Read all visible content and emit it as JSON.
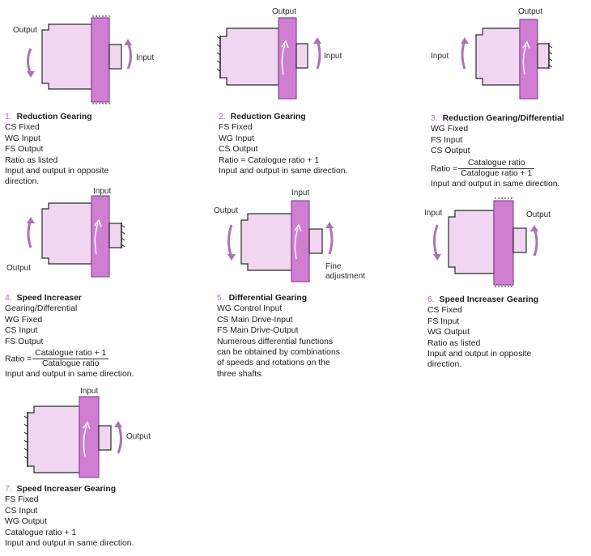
{
  "colors": {
    "body": "#f0d6f0",
    "gear": "#cf7ed2",
    "gear_stroke": "#8c4a96",
    "arrow": "#b070b8",
    "num": "#b070b8"
  },
  "diagrams": [
    {
      "num": "1.",
      "title": "Reduction Gearing",
      "lines": [
        "CS  Fixed",
        "WG  Input",
        "FS  Output",
        "Ratio as listed",
        "Input and output in opposite",
        "direction."
      ],
      "labels": [
        "Output",
        "Input"
      ]
    },
    {
      "num": "2.",
      "title": "Reduction Gearing",
      "lines": [
        "FS  Fixed",
        "WG  Input",
        "CS  Output",
        "Ratio = Catalogue ratio + 1",
        "Input and output in same direction."
      ],
      "labels": [
        "Output",
        "Input"
      ]
    },
    {
      "num": "3.",
      "title": "Reduction Gearing/Differential",
      "lines": [
        "WG  Fixed",
        "FS  Input",
        "CS  Output"
      ],
      "ratio_label": "Ratio =",
      "ratio_num": "Catalogue ratio",
      "ratio_den": "Catalogue ratio + 1",
      "after": [
        "Input and output in same direction."
      ],
      "labels": [
        "Output",
        "Input"
      ]
    },
    {
      "num": "4.",
      "title": "Speed Increaser",
      "lines": [
        "Gearing/Differential",
        "WG  Fixed",
        "CS  Input",
        "FS  Output"
      ],
      "ratio_label": "Ratio =",
      "ratio_num": "Catalogue ratio + 1",
      "ratio_den": "Catalogue ratio",
      "after": [
        "Input and output in same direction."
      ],
      "labels": [
        "Input",
        "Output"
      ]
    },
    {
      "num": "5.",
      "title": "Differential Gearing",
      "lines": [
        "WG  Control Input",
        "CS  Main Drive-Input",
        "FS  Main Drive-Output",
        "Numerous differential functions",
        "can be obtained by combinations",
        "of speeds and rotations on the",
        "three shafts."
      ],
      "labels": [
        "Input",
        "Output",
        "Fine",
        "adjustment"
      ]
    },
    {
      "num": "6.",
      "title": "Speed Increaser Gearing",
      "lines": [
        "CS  Fixed",
        "FS  Input",
        "WG  Output",
        "Ratio as listed",
        "Input and output in opposite",
        "direction."
      ],
      "labels": [
        "Input",
        "Output"
      ]
    },
    {
      "num": "7.",
      "title": "Speed Increaser Gearing",
      "lines": [
        "FS  Fixed",
        "CS  Input",
        "WG  Output",
        "Catalogue ratio + 1",
        "Input and output in same direction."
      ],
      "labels": [
        "Input",
        "Output"
      ]
    }
  ]
}
